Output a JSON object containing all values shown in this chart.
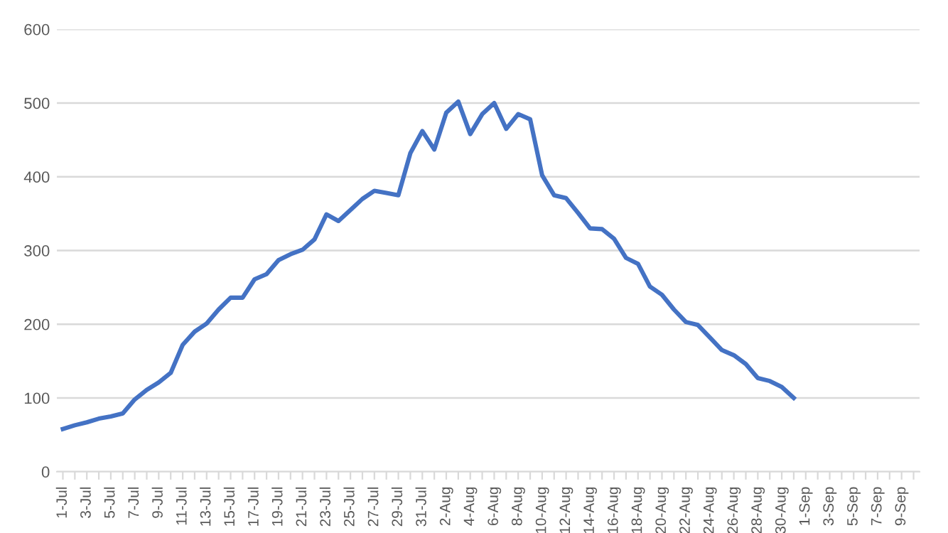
{
  "chart_data": {
    "type": "line",
    "categories": [
      "1-Jul",
      null,
      "3-Jul",
      null,
      "5-Jul",
      null,
      "7-Jul",
      null,
      "9-Jul",
      null,
      "11-Jul",
      null,
      "13-Jul",
      null,
      "15-Jul",
      null,
      "17-Jul",
      null,
      "19-Jul",
      null,
      "21-Jul",
      null,
      "23-Jul",
      null,
      "25-Jul",
      null,
      "27-Jul",
      null,
      "29-Jul",
      null,
      "31-Jul",
      null,
      "2-Aug",
      null,
      "4-Aug",
      null,
      "6-Aug",
      null,
      "8-Aug",
      null,
      "10-Aug",
      null,
      "12-Aug",
      null,
      "14-Aug",
      null,
      "16-Aug",
      null,
      "18-Aug",
      null,
      "20-Aug",
      null,
      "22-Aug",
      null,
      "24-Aug",
      null,
      "26-Aug",
      null,
      "28-Aug",
      null,
      "30-Aug",
      null,
      "1-Sep",
      null,
      "3-Sep",
      null,
      "5-Sep",
      null,
      "7-Sep",
      null,
      "9-Sep",
      null
    ],
    "series": [
      {
        "color": "#4472c4",
        "values": [
          58,
          63,
          67,
          72,
          75,
          79,
          98,
          111,
          121,
          134,
          172,
          190,
          201,
          220,
          236,
          236,
          261,
          268,
          287,
          295,
          301,
          315,
          349,
          340,
          355,
          370,
          381,
          378,
          375,
          432,
          462,
          437,
          487,
          502,
          458,
          485,
          500,
          465,
          485,
          478,
          402,
          375,
          371,
          351,
          330,
          329,
          316,
          290,
          282,
          251,
          240,
          220,
          203,
          199,
          182,
          165,
          158,
          146,
          127,
          123,
          115,
          100,
          null,
          null,
          null,
          null,
          null,
          null,
          null,
          null,
          null,
          null
        ]
      }
    ],
    "ylim": [
      0,
      600
    ],
    "yticks": [
      0,
      100,
      200,
      300,
      400,
      500,
      600
    ],
    "grid": "y",
    "legend": false,
    "marker": "none",
    "line_style": "solid"
  }
}
